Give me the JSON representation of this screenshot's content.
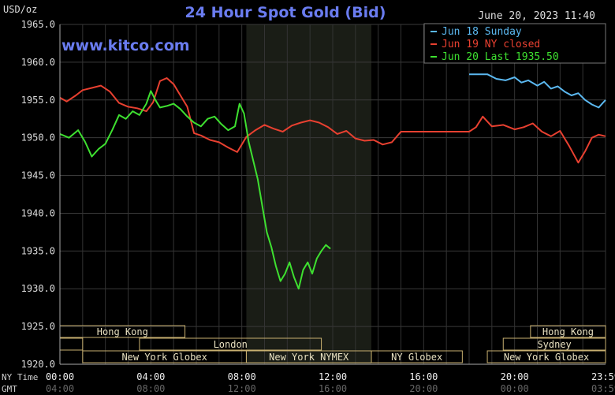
{
  "chart_data": {
    "type": "line",
    "title": "24 Hour Spot Gold (Bid)",
    "ylabel": "USD/oz",
    "timestamp": "June 20, 2023 11:40",
    "website": "www.kitco.com",
    "ylim": [
      1920,
      1965
    ],
    "yticks": [
      1920,
      1925,
      1930,
      1935,
      1940,
      1945,
      1950,
      1955,
      1960,
      1965
    ],
    "ytick_labels": [
      "1920.0",
      "1925.0",
      "1930.0",
      "1935.0",
      "1940.0",
      "1945.0",
      "1950.0",
      "1955.0",
      "1960.0",
      "1965.0"
    ],
    "x_axis_ny": {
      "label": "NY Time",
      "ticks": [
        0,
        4,
        8,
        12,
        16,
        20,
        24
      ],
      "tick_labels": [
        "00:00",
        "04:00",
        "08:00",
        "12:00",
        "16:00",
        "20:00",
        "23:59"
      ]
    },
    "x_axis_gmt": {
      "label": "GMT",
      "ticks": [
        0,
        4,
        8,
        12,
        16,
        20,
        24
      ],
      "tick_labels": [
        "04:00",
        "08:00",
        "12:00",
        "16:00",
        "20:00",
        "00:00",
        "03:59"
      ]
    },
    "grid": true,
    "legend_position": "top-right",
    "highlight_hours": [
      8.2,
      13.7
    ],
    "sessions": [
      {
        "label": "Hong Kong",
        "start": 0,
        "end": 5.5,
        "row": 0
      },
      {
        "label": "",
        "start": 0,
        "end": 1.0,
        "row": 1
      },
      {
        "label": "London",
        "start": 3.5,
        "end": 11.5,
        "row": 1
      },
      {
        "label": "New York Globex",
        "start": 1.0,
        "end": 8.2,
        "row": 2
      },
      {
        "label": "New York NYMEX",
        "start": 8.2,
        "end": 13.7,
        "row": 2
      },
      {
        "label": "NY Globex",
        "start": 13.7,
        "end": 17.7,
        "row": 2
      },
      {
        "label": "Hong Kong",
        "start": 20.7,
        "end": 24,
        "row": 0
      },
      {
        "label": "Sydney",
        "start": 19.5,
        "end": 24,
        "row": 1
      },
      {
        "label": "New York Globex",
        "start": 18.8,
        "end": 24,
        "row": 2
      }
    ],
    "series": [
      {
        "name": "Jun 18 Sunday",
        "color": "#5bb8f0",
        "x": [
          18.0,
          18.8,
          19.2,
          19.6,
          20.0,
          20.3,
          20.6,
          21.0,
          21.3,
          21.6,
          21.9,
          22.2,
          22.5,
          22.8,
          23.1,
          23.4,
          23.7,
          24.0
        ],
        "y": [
          1958.4,
          1958.4,
          1957.8,
          1957.6,
          1958.0,
          1957.3,
          1957.6,
          1956.9,
          1957.4,
          1956.5,
          1956.8,
          1956.1,
          1955.6,
          1955.9,
          1955.0,
          1954.4,
          1954.0,
          1955.0
        ]
      },
      {
        "name": "Jun 19 NY closed",
        "color": "#e84030",
        "x": [
          0.0,
          0.3,
          0.7,
          1.0,
          1.4,
          1.8,
          2.2,
          2.6,
          3.0,
          3.4,
          3.8,
          4.1,
          4.4,
          4.7,
          5.0,
          5.3,
          5.6,
          5.9,
          6.2,
          6.6,
          7.0,
          7.4,
          7.8,
          8.2,
          8.6,
          9.0,
          9.4,
          9.8,
          10.2,
          10.6,
          11.0,
          11.4,
          11.8,
          12.2,
          12.6,
          13.0,
          13.4,
          13.8,
          14.2,
          14.6,
          15.0,
          16.0,
          17.0,
          18.0,
          18.3,
          18.6,
          19.0,
          19.5,
          20.0,
          20.4,
          20.8,
          21.2,
          21.6,
          22.0,
          22.4,
          22.8,
          23.1,
          23.4,
          23.7,
          24.0
        ],
        "y": [
          1955.3,
          1954.8,
          1955.6,
          1956.3,
          1956.6,
          1956.9,
          1956.1,
          1954.6,
          1954.1,
          1953.9,
          1953.5,
          1954.7,
          1957.5,
          1957.9,
          1957.1,
          1955.6,
          1954.1,
          1950.6,
          1950.3,
          1949.7,
          1949.4,
          1948.7,
          1948.1,
          1950.1,
          1951.0,
          1951.7,
          1951.2,
          1950.8,
          1951.6,
          1952.0,
          1952.3,
          1952.0,
          1951.4,
          1950.5,
          1950.9,
          1949.9,
          1949.6,
          1949.7,
          1949.1,
          1949.4,
          1950.8,
          1950.8,
          1950.8,
          1950.8,
          1951.4,
          1952.8,
          1951.5,
          1951.7,
          1951.1,
          1951.4,
          1951.9,
          1950.8,
          1950.2,
          1950.9,
          1948.9,
          1946.7,
          1948.2,
          1950.0,
          1950.4,
          1950.2
        ]
      },
      {
        "name": "Jun 20 Last 1935.50",
        "color": "#3ee030",
        "x": [
          0.0,
          0.4,
          0.8,
          1.1,
          1.4,
          1.7,
          2.0,
          2.3,
          2.6,
          2.9,
          3.2,
          3.5,
          3.8,
          4.0,
          4.2,
          4.4,
          4.7,
          5.0,
          5.3,
          5.6,
          5.9,
          6.2,
          6.5,
          6.8,
          7.1,
          7.4,
          7.7,
          7.9,
          8.1,
          8.3,
          8.5,
          8.7,
          8.9,
          9.1,
          9.3,
          9.5,
          9.7,
          9.9,
          10.1,
          10.3,
          10.5,
          10.7,
          10.9,
          11.1,
          11.3,
          11.5,
          11.7,
          11.9
        ],
        "y": [
          1950.5,
          1950.0,
          1951.0,
          1949.5,
          1947.5,
          1948.5,
          1949.2,
          1951.0,
          1953.0,
          1952.5,
          1953.5,
          1953.0,
          1954.5,
          1956.2,
          1955.0,
          1954.0,
          1954.2,
          1954.5,
          1953.8,
          1952.8,
          1952.0,
          1951.5,
          1952.5,
          1952.8,
          1951.8,
          1951.0,
          1951.5,
          1954.5,
          1953.2,
          1949.5,
          1947.0,
          1944.5,
          1941.0,
          1937.5,
          1935.5,
          1933.0,
          1931.0,
          1932.0,
          1933.5,
          1931.5,
          1930.0,
          1932.5,
          1933.5,
          1932.0,
          1934.0,
          1935.0,
          1935.8,
          1935.3
        ]
      }
    ]
  }
}
